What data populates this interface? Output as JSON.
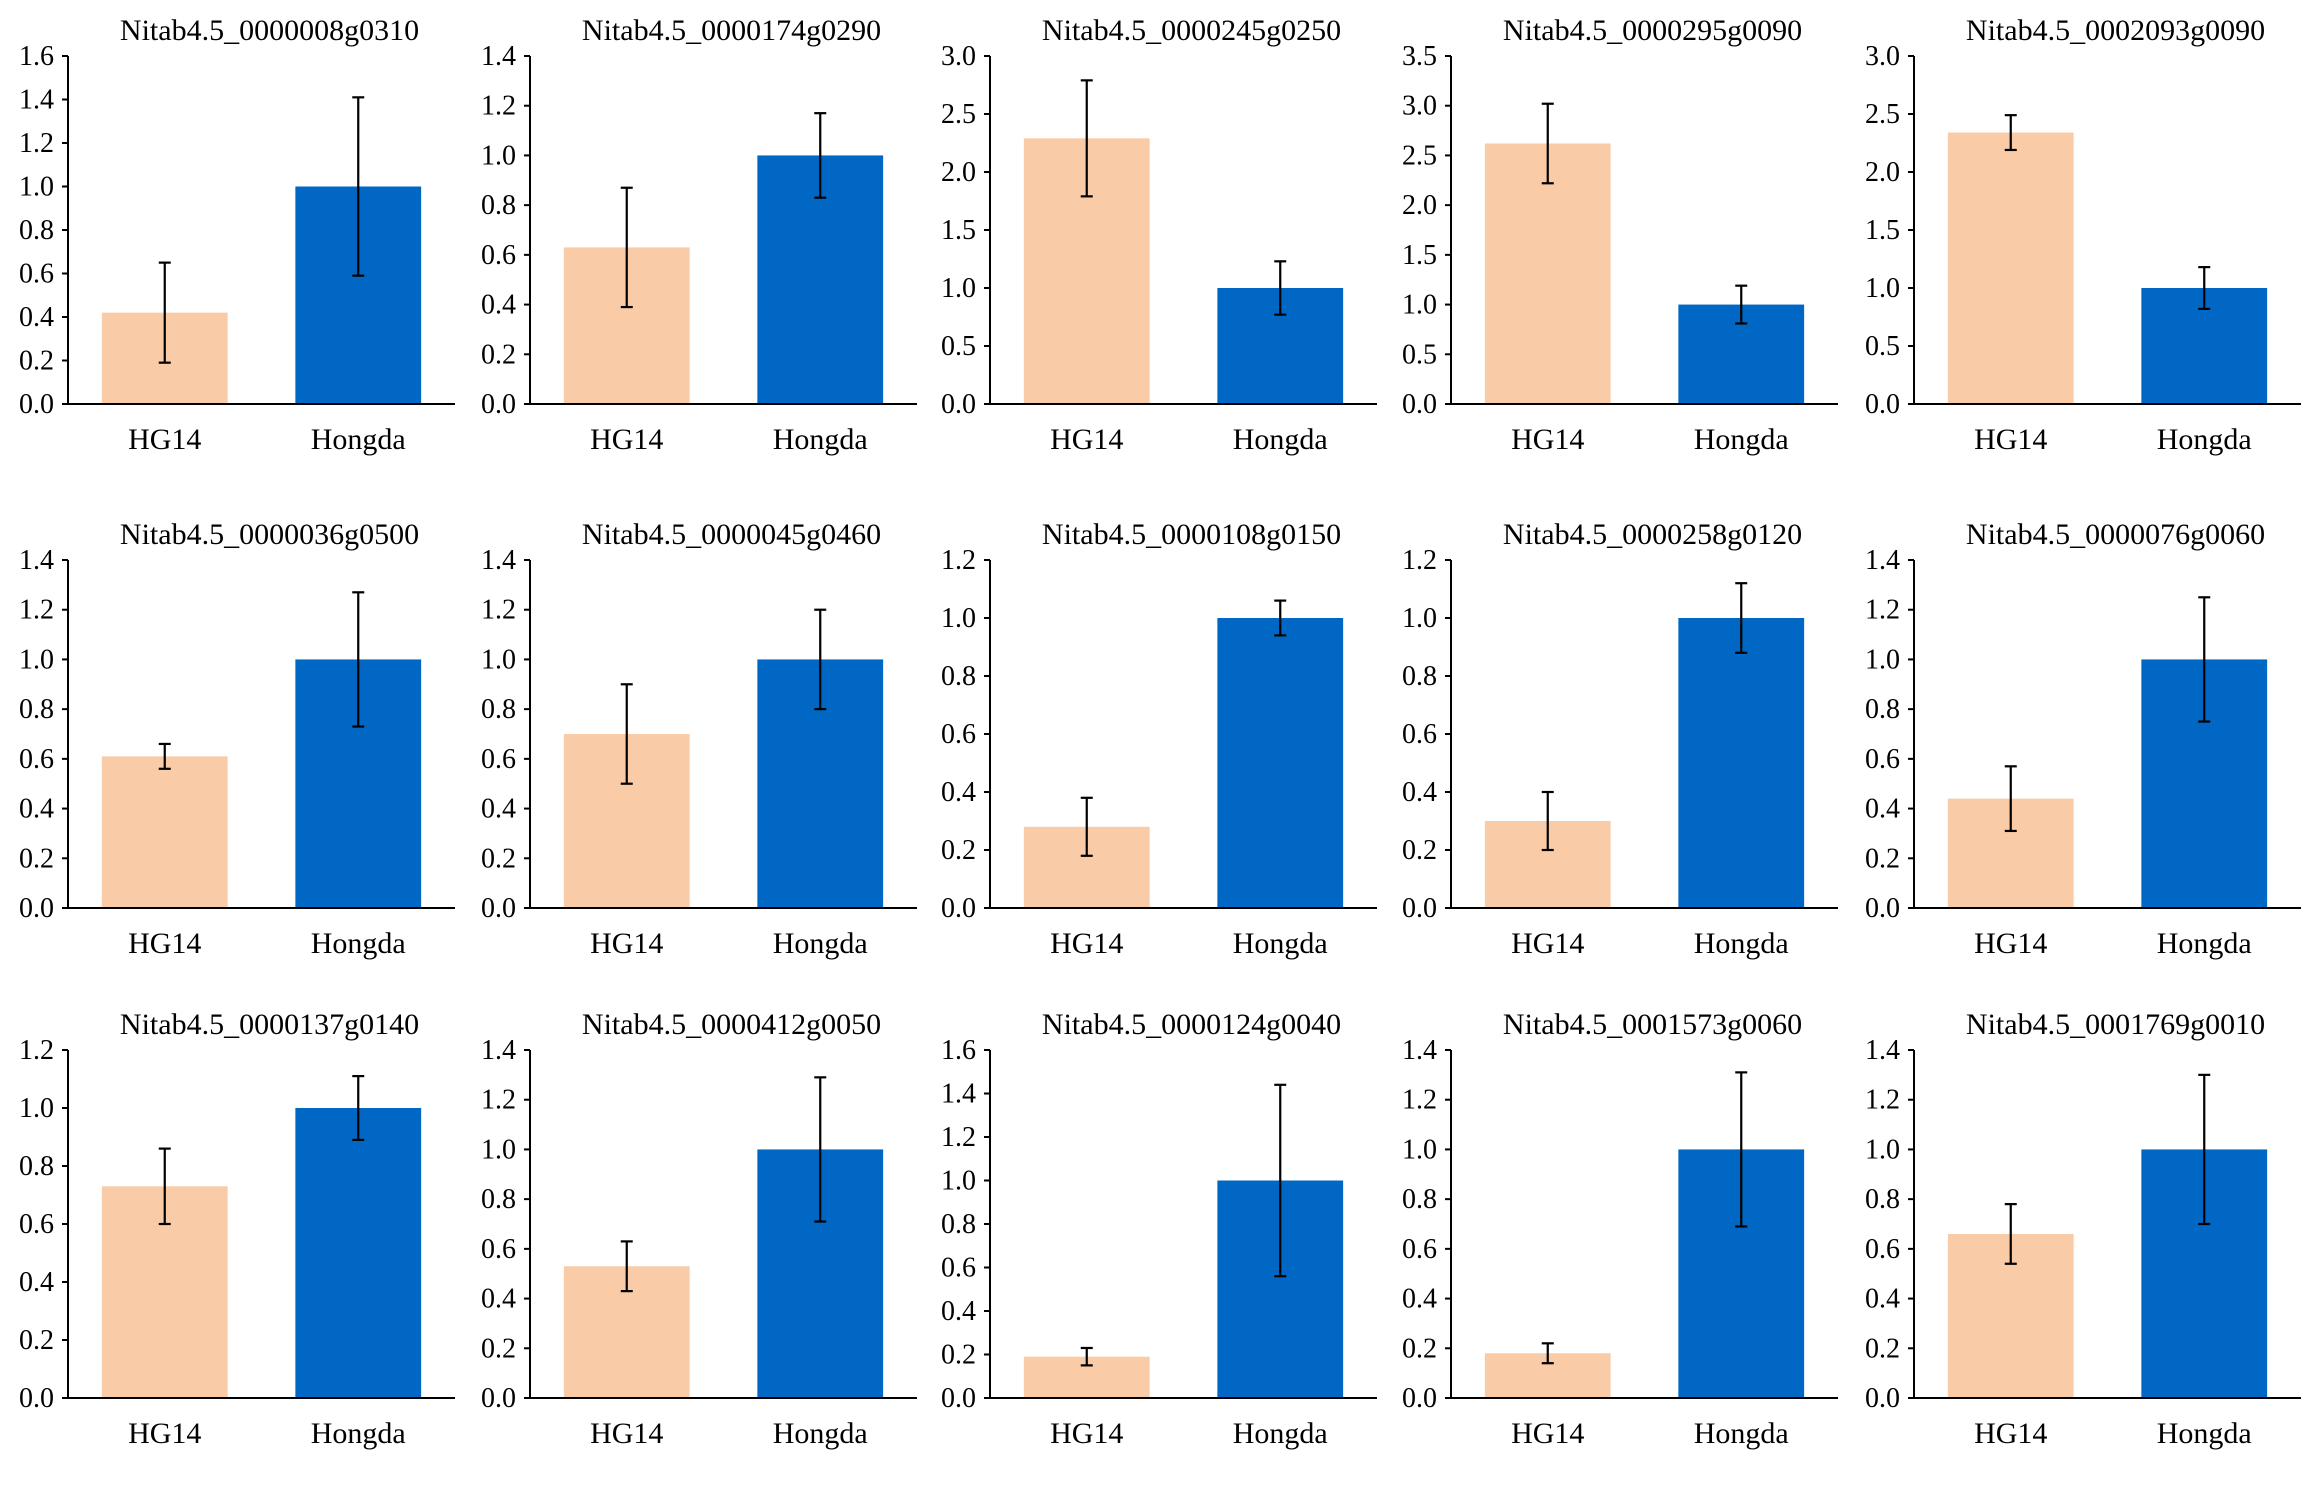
{
  "figure": {
    "colors": {
      "HG14": "#f9cba7",
      "Hongda": "#0068c4",
      "axis": "#000000",
      "error": "#000000"
    }
  },
  "chart_data": [
    {
      "type": "bar",
      "title": "Nitab4.5_0000008g0310",
      "categories": [
        "HG14",
        "Hongda"
      ],
      "values": [
        0.42,
        1.0
      ],
      "errors": [
        0.23,
        0.41
      ],
      "ylim": [
        0,
        1.6
      ],
      "yticks": [
        "0.0",
        "0.2",
        "0.4",
        "0.6",
        "0.8",
        "1.0",
        "1.2",
        "1.4",
        "1.6"
      ],
      "xlabel": "",
      "ylabel": ""
    },
    {
      "type": "bar",
      "title": "Nitab4.5_0000174g0290",
      "categories": [
        "HG14",
        "Hongda"
      ],
      "values": [
        0.63,
        1.0
      ],
      "errors": [
        0.24,
        0.17
      ],
      "ylim": [
        0,
        1.4
      ],
      "yticks": [
        "0.0",
        "0.2",
        "0.4",
        "0.6",
        "0.8",
        "1.0",
        "1.2",
        "1.4"
      ],
      "xlabel": "",
      "ylabel": ""
    },
    {
      "type": "bar",
      "title": "Nitab4.5_0000245g0250",
      "categories": [
        "HG14",
        "Hongda"
      ],
      "values": [
        2.29,
        1.0
      ],
      "errors": [
        0.5,
        0.23
      ],
      "ylim": [
        0,
        3.0
      ],
      "yticks": [
        "0.0",
        "0.5",
        "1.0",
        "1.5",
        "2.0",
        "2.5",
        "3.0"
      ],
      "xlabel": "",
      "ylabel": ""
    },
    {
      "type": "bar",
      "title": "Nitab4.5_0000295g0090",
      "categories": [
        "HG14",
        "Hongda"
      ],
      "values": [
        2.62,
        1.0
      ],
      "errors": [
        0.4,
        0.19
      ],
      "ylim": [
        0,
        3.5
      ],
      "yticks": [
        "0.0",
        "0.5",
        "1.0",
        "1.5",
        "2.0",
        "2.5",
        "3.0",
        "3.5"
      ],
      "xlabel": "",
      "ylabel": ""
    },
    {
      "type": "bar",
      "title": "Nitab4.5_0002093g0090",
      "categories": [
        "HG14",
        "Hongda"
      ],
      "values": [
        2.34,
        1.0
      ],
      "errors": [
        0.15,
        0.18
      ],
      "ylim": [
        0,
        3.0
      ],
      "yticks": [
        "0.0",
        "0.5",
        "1.0",
        "1.5",
        "2.0",
        "2.5",
        "3.0"
      ],
      "xlabel": "",
      "ylabel": ""
    },
    {
      "type": "bar",
      "title": "Nitab4.5_0000036g0500",
      "categories": [
        "HG14",
        "Hongda"
      ],
      "values": [
        0.61,
        1.0
      ],
      "errors": [
        0.05,
        0.27
      ],
      "ylim": [
        0,
        1.4
      ],
      "yticks": [
        "0.0",
        "0.2",
        "0.4",
        "0.6",
        "0.8",
        "1.0",
        "1.2",
        "1.4"
      ],
      "xlabel": "",
      "ylabel": ""
    },
    {
      "type": "bar",
      "title": "Nitab4.5_0000045g0460",
      "categories": [
        "HG14",
        "Hongda"
      ],
      "values": [
        0.7,
        1.0
      ],
      "errors": [
        0.2,
        0.2
      ],
      "ylim": [
        0,
        1.4
      ],
      "yticks": [
        "0.0",
        "0.2",
        "0.4",
        "0.6",
        "0.8",
        "1.0",
        "1.2",
        "1.4"
      ],
      "xlabel": "",
      "ylabel": ""
    },
    {
      "type": "bar",
      "title": "Nitab4.5_0000108g0150",
      "categories": [
        "HG14",
        "Hongda"
      ],
      "values": [
        0.28,
        1.0
      ],
      "errors": [
        0.1,
        0.06
      ],
      "ylim": [
        0,
        1.2
      ],
      "yticks": [
        "0.0",
        "0.2",
        "0.4",
        "0.6",
        "0.8",
        "1.0",
        "1.2"
      ],
      "xlabel": "",
      "ylabel": ""
    },
    {
      "type": "bar",
      "title": "Nitab4.5_0000258g0120",
      "categories": [
        "HG14",
        "Hongda"
      ],
      "values": [
        0.3,
        1.0
      ],
      "errors": [
        0.1,
        0.12
      ],
      "ylim": [
        0,
        1.2
      ],
      "yticks": [
        "0.0",
        "0.2",
        "0.4",
        "0.6",
        "0.8",
        "1.0",
        "1.2"
      ],
      "xlabel": "",
      "ylabel": ""
    },
    {
      "type": "bar",
      "title": "Nitab4.5_0000076g0060",
      "categories": [
        "HG14",
        "Hongda"
      ],
      "values": [
        0.44,
        1.0
      ],
      "errors": [
        0.13,
        0.25
      ],
      "ylim": [
        0,
        1.4
      ],
      "yticks": [
        "0.0",
        "0.2",
        "0.4",
        "0.6",
        "0.8",
        "1.0",
        "1.2",
        "1.4"
      ],
      "xlabel": "",
      "ylabel": ""
    },
    {
      "type": "bar",
      "title": "Nitab4.5_0000137g0140",
      "categories": [
        "HG14",
        "Hongda"
      ],
      "values": [
        0.73,
        1.0
      ],
      "errors": [
        0.13,
        0.11
      ],
      "ylim": [
        0,
        1.2
      ],
      "yticks": [
        "0.0",
        "0.2",
        "0.4",
        "0.6",
        "0.8",
        "1.0",
        "1.2"
      ],
      "xlabel": "",
      "ylabel": ""
    },
    {
      "type": "bar",
      "title": "Nitab4.5_0000412g0050",
      "categories": [
        "HG14",
        "Hongda"
      ],
      "values": [
        0.53,
        1.0
      ],
      "errors": [
        0.1,
        0.29
      ],
      "ylim": [
        0,
        1.4
      ],
      "yticks": [
        "0.0",
        "0.2",
        "0.4",
        "0.6",
        "0.8",
        "1.0",
        "1.2",
        "1.4"
      ],
      "xlabel": "",
      "ylabel": ""
    },
    {
      "type": "bar",
      "title": "Nitab4.5_0000124g0040",
      "categories": [
        "HG14",
        "Hongda"
      ],
      "values": [
        0.19,
        1.0
      ],
      "errors": [
        0.04,
        0.44
      ],
      "ylim": [
        0,
        1.6
      ],
      "yticks": [
        "0.0",
        "0.2",
        "0.4",
        "0.6",
        "0.8",
        "1.0",
        "1.2",
        "1.4",
        "1.6"
      ],
      "xlabel": "",
      "ylabel": ""
    },
    {
      "type": "bar",
      "title": "Nitab4.5_0001573g0060",
      "categories": [
        "HG14",
        "Hongda"
      ],
      "values": [
        0.18,
        1.0
      ],
      "errors": [
        0.04,
        0.31
      ],
      "ylim": [
        0,
        1.4
      ],
      "yticks": [
        "0.0",
        "0.2",
        "0.4",
        "0.6",
        "0.8",
        "1.0",
        "1.2",
        "1.4"
      ],
      "xlabel": "",
      "ylabel": ""
    },
    {
      "type": "bar",
      "title": "Nitab4.5_0001769g0010",
      "categories": [
        "HG14",
        "Hongda"
      ],
      "values": [
        0.66,
        1.0
      ],
      "errors": [
        0.12,
        0.3
      ],
      "ylim": [
        0,
        1.4
      ],
      "yticks": [
        "0.0",
        "0.2",
        "0.4",
        "0.6",
        "0.8",
        "1.0",
        "1.2",
        "1.4"
      ],
      "xlabel": "",
      "ylabel": ""
    }
  ]
}
